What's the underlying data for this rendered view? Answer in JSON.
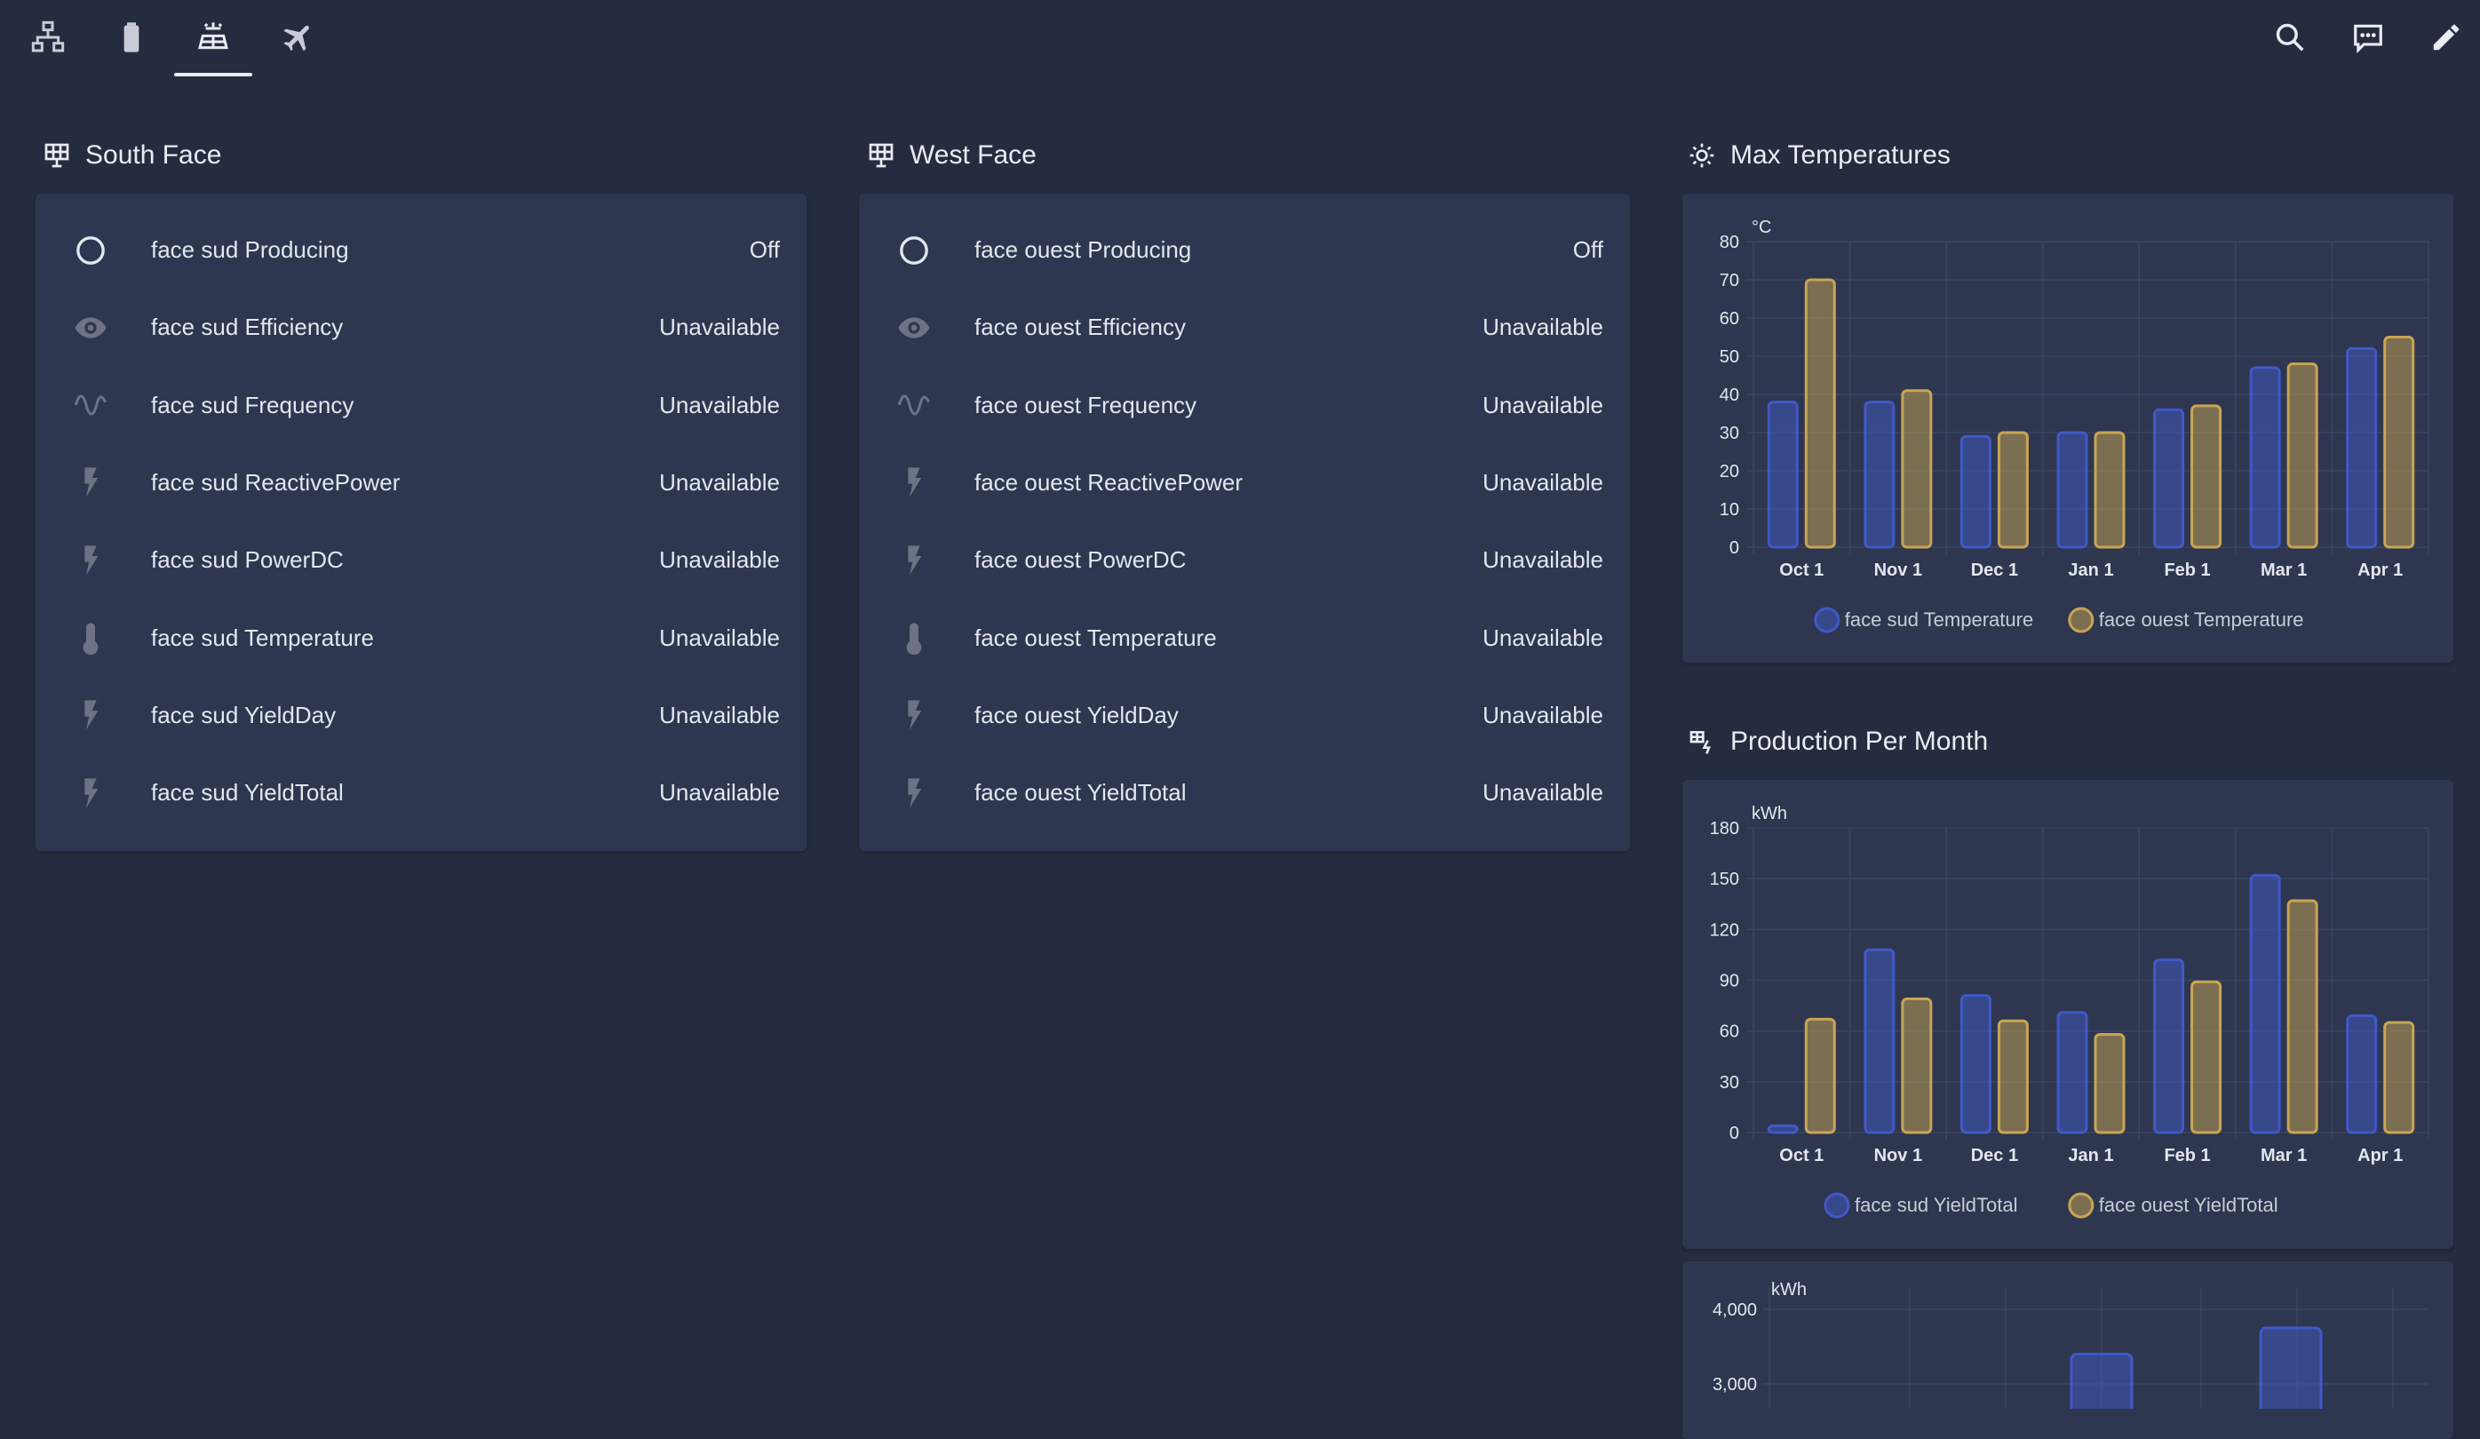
{
  "tabs": [
    {
      "name": "network-icon",
      "active": false
    },
    {
      "name": "battery-icon",
      "active": false
    },
    {
      "name": "solar-power-icon",
      "active": true
    },
    {
      "name": "airplane-icon",
      "active": false
    }
  ],
  "actions": [
    "search-icon",
    "comment-icon",
    "pencil-icon"
  ],
  "south": {
    "title": "South Face",
    "rows": [
      {
        "icon": "circle-outline-icon",
        "name": "face sud Producing",
        "value": "Off"
      },
      {
        "icon": "eye-icon",
        "name": "face sud Efficiency",
        "value": "Unavailable"
      },
      {
        "icon": "sine-wave-icon",
        "name": "face sud Frequency",
        "value": "Unavailable"
      },
      {
        "icon": "flash-icon",
        "name": "face sud ReactivePower",
        "value": "Unavailable"
      },
      {
        "icon": "flash-icon",
        "name": "face sud PowerDC",
        "value": "Unavailable"
      },
      {
        "icon": "thermometer-icon",
        "name": "face sud Temperature",
        "value": "Unavailable"
      },
      {
        "icon": "flash-icon",
        "name": "face sud YieldDay",
        "value": "Unavailable"
      },
      {
        "icon": "flash-icon",
        "name": "face sud YieldTotal",
        "value": "Unavailable"
      }
    ]
  },
  "west": {
    "title": "West Face",
    "rows": [
      {
        "icon": "circle-outline-icon",
        "name": "face ouest Producing",
        "value": "Off"
      },
      {
        "icon": "eye-icon",
        "name": "face ouest Efficiency",
        "value": "Unavailable"
      },
      {
        "icon": "sine-wave-icon",
        "name": "face ouest Frequency",
        "value": "Unavailable"
      },
      {
        "icon": "flash-icon",
        "name": "face ouest ReactivePower",
        "value": "Unavailable"
      },
      {
        "icon": "flash-icon",
        "name": "face ouest PowerDC",
        "value": "Unavailable"
      },
      {
        "icon": "thermometer-icon",
        "name": "face ouest Temperature",
        "value": "Unavailable"
      },
      {
        "icon": "flash-icon",
        "name": "face ouest YieldDay",
        "value": "Unavailable"
      },
      {
        "icon": "flash-icon",
        "name": "face ouest YieldTotal",
        "value": "Unavailable"
      }
    ]
  },
  "temp_section": {
    "title": "Max Temperatures",
    "icon": "sun-thermometer-icon"
  },
  "prod_section": {
    "title": "Production Per Month",
    "icon": "solar-power-variant-icon"
  },
  "colors": {
    "series_blue": "#4059c8",
    "series_gold": "#c9a553",
    "background": "#262c3f",
    "card": "#2e374f"
  },
  "chart_data": [
    {
      "type": "bar",
      "unit": "°C",
      "categories": [
        "Oct 1",
        "Nov 1",
        "Dec 1",
        "Jan 1",
        "Feb 1",
        "Mar 1",
        "Apr 1"
      ],
      "yticks": [
        "0",
        "10",
        "20",
        "30",
        "40",
        "50",
        "60",
        "70",
        "80"
      ],
      "ylim": [
        0,
        80
      ],
      "series": [
        {
          "name": "face sud Temperature",
          "values": [
            38,
            38,
            29,
            30,
            36,
            47,
            52
          ]
        },
        {
          "name": "face ouest Temperature",
          "values": [
            70,
            41,
            30,
            30,
            37,
            48,
            55
          ]
        }
      ],
      "legend": "bottom",
      "grid": true
    },
    {
      "type": "bar",
      "unit": "kWh",
      "categories": [
        "Oct 1",
        "Nov 1",
        "Dec 1",
        "Jan 1",
        "Feb 1",
        "Mar 1",
        "Apr 1"
      ],
      "yticks": [
        "0",
        "30",
        "60",
        "90",
        "120",
        "150",
        "180"
      ],
      "ylim": [
        0,
        180
      ],
      "series": [
        {
          "name": "face sud YieldTotal",
          "values": [
            4,
            108,
            81,
            71,
            102,
            152,
            69
          ]
        },
        {
          "name": "face ouest YieldTotal",
          "values": [
            67,
            79,
            66,
            58,
            89,
            137,
            65
          ]
        }
      ],
      "legend": "bottom",
      "grid": true
    },
    {
      "type": "bar",
      "unit": "kWh",
      "yticks": [
        "4,000",
        "3,000"
      ],
      "ylim": [
        2500,
        4000
      ],
      "series": [
        {
          "values": [
            3400,
            3750
          ]
        }
      ],
      "grid": true
    }
  ]
}
